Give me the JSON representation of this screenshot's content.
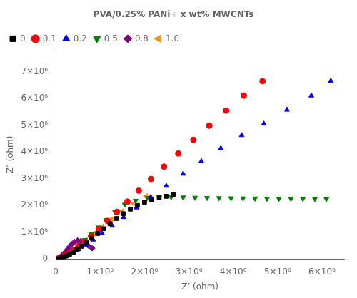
{
  "chart_data": {
    "type": "scatter",
    "title": "PVA/0.25% PANi+ x wt% MWCNTs",
    "xlabel": "Z’ (ohm)",
    "ylabel": "Z″ (ohm)",
    "xlim": [
      0,
      6500000
    ],
    "ylim": [
      0,
      7800000
    ],
    "xticks": [
      0,
      {
        "value": 1000000,
        "label": "1×10⁶"
      },
      {
        "value": 2000000,
        "label": "2×10⁶"
      },
      {
        "value": 3000000,
        "label": "3×10⁶"
      },
      {
        "value": 4000000,
        "label": "4×10⁶"
      },
      {
        "value": 5000000,
        "label": "5×10⁶"
      },
      {
        "value": 6000000,
        "label": "6×10⁶"
      }
    ],
    "yticks": [
      0,
      {
        "value": 1000000,
        "label": "1×10⁶"
      },
      {
        "value": 2000000,
        "label": "2×10⁶"
      },
      {
        "value": 3000000,
        "label": "3×10⁶"
      },
      {
        "value": 4000000,
        "label": "4×10⁶"
      },
      {
        "value": 5000000,
        "label": "5×10⁶"
      },
      {
        "value": 6000000,
        "label": "6×10⁶"
      },
      {
        "value": 7000000,
        "label": "7×10⁶"
      }
    ],
    "grid": false,
    "legend": "upper left",
    "series": [
      {
        "name": "0",
        "color": "#000000",
        "marker": "square",
        "x": [
          55000,
          90000,
          130000,
          180000,
          240000,
          310000,
          390000,
          480000,
          580000,
          690000,
          810000,
          940000,
          1080000,
          1220000,
          1370000,
          1520000,
          1680000,
          1840000,
          2000000,
          2160000,
          2330000,
          2490000,
          2650000
        ],
        "y": [
          8000,
          20000,
          40000,
          70000,
          115000,
          175000,
          255000,
          355000,
          475000,
          615000,
          775000,
          950000,
          1130000,
          1320000,
          1510000,
          1690000,
          1860000,
          2000000,
          2120000,
          2200000,
          2280000,
          2340000,
          2400000
        ]
      },
      {
        "name": "0.1",
        "color": "#ff0000",
        "marker": "circle",
        "x": [
          30000,
          60000,
          100000,
          150000,
          215000,
          295000,
          390000,
          505000,
          640000,
          795000,
          970000,
          1165000,
          1380000,
          1615000,
          1870000,
          2145000,
          2440000,
          2760000,
          3100000,
          3460000,
          3840000,
          4240000,
          4660000
        ],
        "y": [
          5000,
          15000,
          35000,
          70000,
          125000,
          205000,
          315000,
          460000,
          640000,
          860000,
          1120000,
          1420000,
          1760000,
          2140000,
          2550000,
          2990000,
          3450000,
          3940000,
          4450000,
          4980000,
          5540000,
          6100000,
          6640000
        ]
      },
      {
        "name": "0.2",
        "color": "#0000ff",
        "marker": "triangle_up",
        "x": [
          40000,
          80000,
          130000,
          200000,
          285000,
          390000,
          515000,
          665000,
          840000,
          1040000,
          1270000,
          1530000,
          1820000,
          2140000,
          2490000,
          2870000,
          3280000,
          3720000,
          4190000,
          4690000,
          5210000,
          5760000,
          6200000
        ],
        "y": [
          5000,
          18000,
          42000,
          82000,
          145000,
          235000,
          360000,
          520000,
          720000,
          960000,
          1240000,
          1560000,
          1920000,
          2310000,
          2730000,
          3180000,
          3650000,
          4130000,
          4620000,
          5050000,
          5570000,
          6100000,
          6650000
        ]
      },
      {
        "name": "0.5",
        "color": "#008000",
        "marker": "triangle_down",
        "x": [
          20000,
          45000,
          80000,
          125000,
          180000,
          248000,
          328000,
          422000,
          530000,
          655000,
          796000,
          956000,
          1135000,
          1335000,
          1555000,
          1800000,
          2060000,
          2330000,
          2600000,
          2870000,
          3140000,
          3410000,
          3680000,
          3950000,
          4220000,
          4490000,
          4760000,
          5030000,
          5300000,
          5570000,
          5840000,
          6100000
        ],
        "y": [
          3000,
          10000,
          25000,
          55000,
          100000,
          165000,
          256000,
          375000,
          526000,
          710000,
          930000,
          1180000,
          1460000,
          1750000,
          2030000,
          2180000,
          2280000,
          2310000,
          2310000,
          2300000,
          2290000,
          2280000,
          2275000,
          2270000,
          2265000,
          2260000,
          2255000,
          2250000,
          2250000,
          2248000,
          2245000,
          2240000
        ]
      },
      {
        "name": "0.8",
        "color": "#800080",
        "marker": "diamond",
        "x": [
          15000,
          28000,
          45000,
          65000,
          90000,
          120000,
          155000,
          196000,
          242000,
          295000,
          355000,
          420000,
          490000,
          566000,
          647000,
          732000,
          820000
        ],
        "y": [
          3000,
          8000,
          20000,
          38000,
          65000,
          105000,
          160000,
          230000,
          320000,
          430000,
          545000,
          640000,
          690000,
          670000,
          600000,
          500000,
          400000
        ]
      },
      {
        "name": "1.0",
        "color": "#ff8c00",
        "marker": "triangle_left",
        "x": [
          20000,
          50000,
          92000,
          148000,
          218000,
          305000,
          410000,
          535000,
          680000,
          848000,
          1040000,
          1256000,
          1495000,
          1755000,
          2035000
        ],
        "y": [
          3000,
          12000,
          32000,
          70000,
          132000,
          222000,
          348000,
          510000,
          710000,
          945000,
          1210000,
          1490000,
          1780000,
          2070000,
          2350000
        ]
      }
    ]
  }
}
